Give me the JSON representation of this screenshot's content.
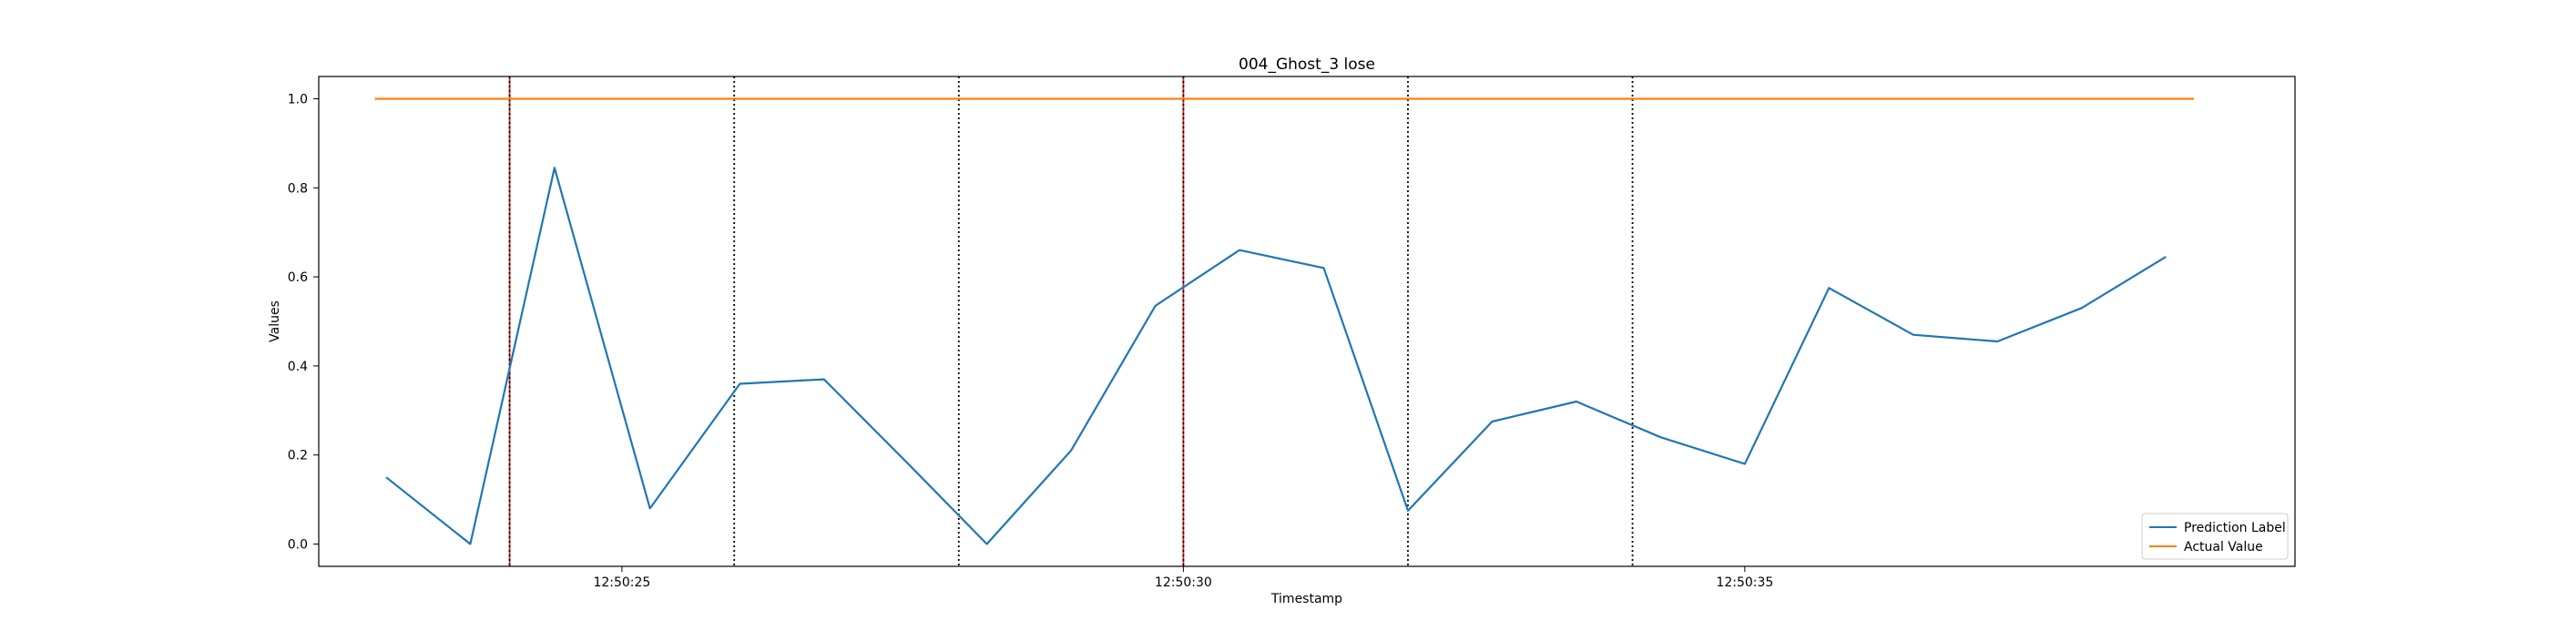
{
  "chart_data": {
    "type": "line",
    "title": "004_Ghost_3 lose",
    "xlabel": "Timestamp",
    "ylabel": "Values",
    "x_unit": "time",
    "xlim": [
      "12:50:22.30",
      "12:50:39.90"
    ],
    "ylim": [
      -0.05,
      1.05
    ],
    "x_ticks": [
      "12:50:25",
      "12:50:30",
      "12:50:35"
    ],
    "y_ticks": [
      "0.0",
      "0.2",
      "0.4",
      "0.6",
      "0.8",
      "1.0"
    ],
    "y_tick_values": [
      0.0,
      0.2,
      0.4,
      0.6,
      0.8,
      1.0
    ],
    "grid": false,
    "legend": "lower right",
    "series": [
      {
        "name": "Prediction Label",
        "color": "#1f77b4",
        "x": [
          "12:50:22.90",
          "12:50:23.65",
          "12:50:24.40",
          "12:50:25.25",
          "12:50:26.05",
          "12:50:26.80",
          "12:50:27.55",
          "12:50:28.25",
          "12:50:29.00",
          "12:50:29.75",
          "12:50:30.50",
          "12:50:31.25",
          "12:50:32.00",
          "12:50:32.75",
          "12:50:33.50",
          "12:50:34.25",
          "12:50:35.00",
          "12:50:35.75",
          "12:50:36.50",
          "12:50:37.25",
          "12:50:38.00",
          "12:50:38.75"
        ],
        "values": [
          0.15,
          0.0,
          0.845,
          0.08,
          0.36,
          0.37,
          0.18,
          0.0,
          0.21,
          0.535,
          0.66,
          0.62,
          0.075,
          0.275,
          0.32,
          0.24,
          0.18,
          0.575,
          0.47,
          0.455,
          0.53,
          0.645
        ]
      },
      {
        "name": "Actual Value",
        "color": "#ff7f0e",
        "x": [
          "12:50:22.80",
          "12:50:39.00"
        ],
        "values": [
          1.0,
          1.0
        ]
      }
    ],
    "vlines": [
      {
        "x": "12:50:24.00",
        "color": "#d62728",
        "style": "solid"
      },
      {
        "x": "12:50:24.00",
        "color": "#000000",
        "style": "dotted"
      },
      {
        "x": "12:50:26.00",
        "color": "#000000",
        "style": "dotted"
      },
      {
        "x": "12:50:28.00",
        "color": "#000000",
        "style": "dotted"
      },
      {
        "x": "12:50:30.00",
        "color": "#d62728",
        "style": "solid"
      },
      {
        "x": "12:50:30.00",
        "color": "#000000",
        "style": "dotted"
      },
      {
        "x": "12:50:32.00",
        "color": "#000000",
        "style": "dotted"
      },
      {
        "x": "12:50:34.00",
        "color": "#000000",
        "style": "dotted"
      }
    ]
  }
}
